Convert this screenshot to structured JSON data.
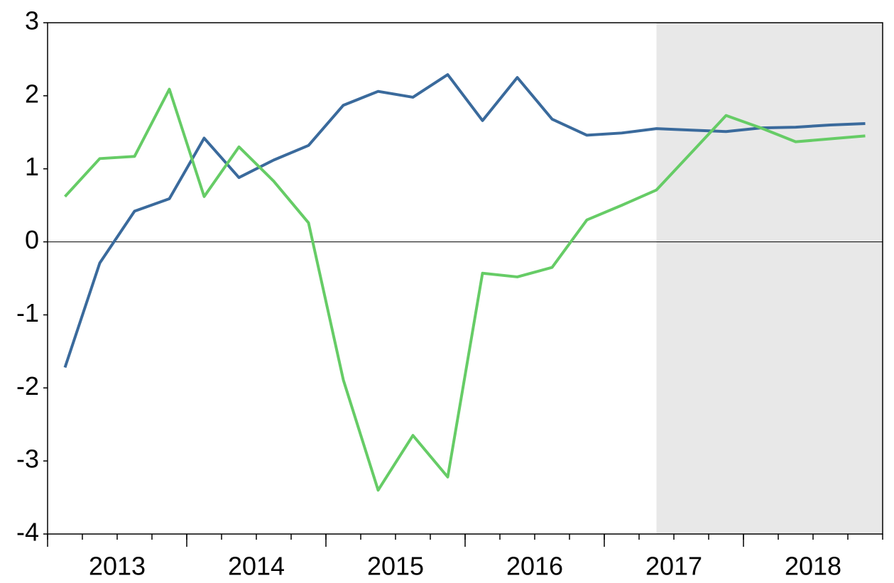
{
  "chart_data": {
    "type": "line",
    "categories": [
      null,
      null,
      null,
      null,
      null,
      null,
      null,
      null,
      null,
      null,
      null,
      null,
      null,
      null,
      null,
      null,
      null,
      null,
      null,
      null,
      null,
      null,
      null,
      null
    ],
    "category_groups": [
      {
        "label": "2013",
        "span": 4
      },
      {
        "label": "2014",
        "span": 4
      },
      {
        "label": "2015",
        "span": 4
      },
      {
        "label": "2016",
        "span": 4
      },
      {
        "label": "2017",
        "span": 4
      },
      {
        "label": "2018",
        "span": 4
      }
    ],
    "shaded_from": 17,
    "series": [
      {
        "color": "#3a6a9c",
        "values": [
          -1.72,
          -0.29,
          0.42,
          0.59,
          1.42,
          0.88,
          1.12,
          1.32,
          1.87,
          2.06,
          1.98,
          2.29,
          1.66,
          2.25,
          1.68,
          1.46,
          1.49,
          1.55,
          1.53,
          1.51,
          1.56,
          1.57,
          1.6,
          1.62
        ]
      },
      {
        "color": "#66cc66",
        "values": [
          0.62,
          1.14,
          1.17,
          2.09,
          0.62,
          1.3,
          0.83,
          0.26,
          -1.89,
          -3.4,
          -2.65,
          -3.22,
          -0.43,
          -0.48,
          -0.35,
          0.3,
          0.5,
          0.71,
          1.22,
          1.73,
          1.56,
          1.37,
          1.41,
          1.45
        ]
      }
    ],
    "ylim": [
      -4,
      3
    ],
    "yticks": [
      -4,
      -3,
      -2,
      -1,
      0,
      1,
      2,
      3
    ],
    "zero_line": true
  }
}
